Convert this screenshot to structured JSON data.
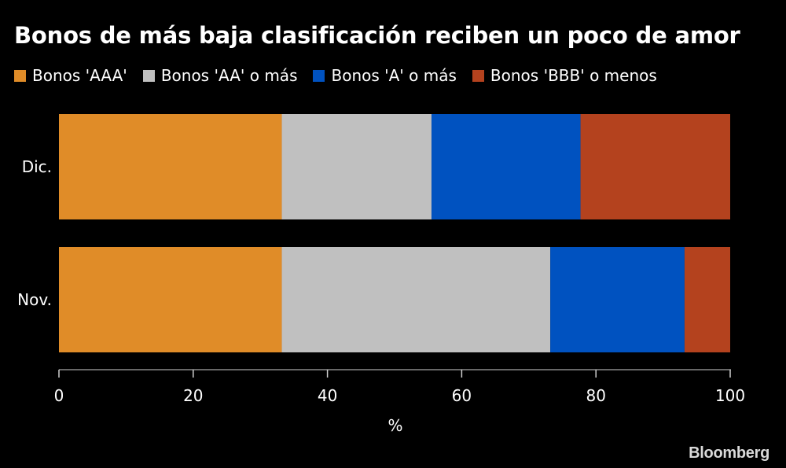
{
  "title": "Bonos de más baja clasificación reciben un poco de amor",
  "brand": "Bloomberg",
  "colors": {
    "background": "#000000",
    "axis": "#cfcfcf",
    "text": "#ffffff"
  },
  "chart_data": {
    "type": "bar",
    "orientation": "horizontal",
    "stacked": true,
    "categories": [
      "Dic.",
      "Nov."
    ],
    "series": [
      {
        "name": "Bonos 'AAA'",
        "color": "#e08c28",
        "values": [
          33.2,
          33.2
        ]
      },
      {
        "name": "Bonos 'AA' o más",
        "color": "#c0c0c0",
        "values": [
          22.3,
          40.0
        ]
      },
      {
        "name": "Bonos 'A' o más",
        "color": "#0052c0",
        "values": [
          22.2,
          20.0
        ]
      },
      {
        "name": "Bonos 'BBB' o menos",
        "color": "#b4421e",
        "values": [
          22.3,
          6.8
        ]
      }
    ],
    "xlabel": "%",
    "ylabel": "",
    "xlim": [
      0,
      100
    ],
    "xticks": [
      0,
      20,
      40,
      60,
      80,
      100
    ],
    "grid": false,
    "legend_position": "top-left"
  }
}
